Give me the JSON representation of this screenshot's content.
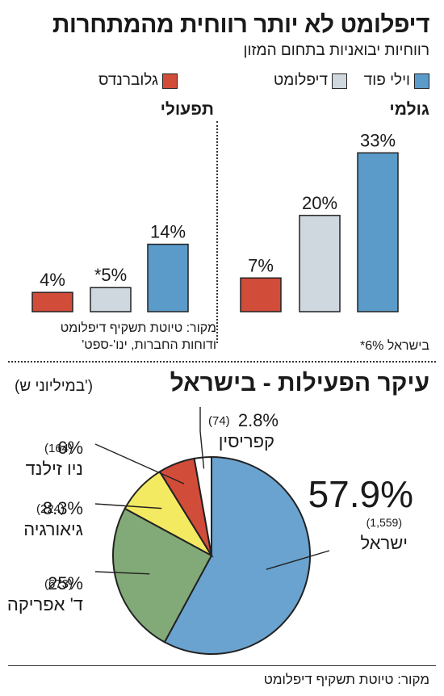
{
  "header": {
    "title": "דיפלומט לא יותר רווחית מהמתחרות",
    "subtitle": "רווחיות יבואניות בתחום המזון"
  },
  "legend": [
    {
      "name": "וילי פוד",
      "color": "#5b9bc9"
    },
    {
      "name": "דיפלומט",
      "color": "#cfd8df"
    },
    {
      "name": "גלוברנדס",
      "color": "#d24c3a"
    }
  ],
  "footnote": "*6% בישראל",
  "source1": {
    "line1": "מקור: טיוטת תשקיף דיפלומט",
    "line2": "ודוחות החברות, ינו'-ספט'"
  },
  "section2": {
    "title": "עיקר הפעילות - בישראל",
    "unit": "(במיליוני ש')"
  },
  "source2": "מקור: טיוטת תשקיף דיפלומט",
  "chart_data": [
    {
      "type": "bar",
      "title": "גולמי",
      "categories": [
        "גלוברנדס",
        "דיפלומט",
        "וילי פוד"
      ],
      "values": [
        7,
        20,
        33
      ],
      "labels": [
        "7%",
        "20%",
        "33%"
      ],
      "colors": [
        "#d24c3a",
        "#cfd8df",
        "#5b9bc9"
      ]
    },
    {
      "type": "bar",
      "title": "תפעולי",
      "categories": [
        "גלוברנדס",
        "דיפלומט",
        "וילי פוד"
      ],
      "values": [
        4,
        5,
        14
      ],
      "labels": [
        "4%",
        "*5%",
        "14%"
      ],
      "colors": [
        "#d24c3a",
        "#cfd8df",
        "#5b9bc9"
      ]
    },
    {
      "type": "pie",
      "title": "עיקר הפעילות - בישראל",
      "slices": [
        {
          "name": "ישראל",
          "percent": 57.9,
          "percent_label": "57.9%",
          "value": 1559,
          "value_label": "(1,559)",
          "color": "#6aa3cf"
        },
        {
          "name": "ד' אפריקה",
          "percent": 25,
          "percent_label": "25%",
          "value": 673,
          "value_label": "(673)",
          "color": "#82aa78"
        },
        {
          "name": "גיאורגיה",
          "percent": 8.3,
          "percent_label": "8.3%",
          "value": 224,
          "value_label": "(224)",
          "color": "#f4ea62"
        },
        {
          "name": "ניו זילנד",
          "percent": 6,
          "percent_label": "6%",
          "value": 164,
          "value_label": "(164)",
          "color": "#d24c3a"
        },
        {
          "name": "קפריסין",
          "percent": 2.8,
          "percent_label": "2.8%",
          "value": 74,
          "value_label": "(74)",
          "color": "#ffffff"
        }
      ]
    }
  ]
}
